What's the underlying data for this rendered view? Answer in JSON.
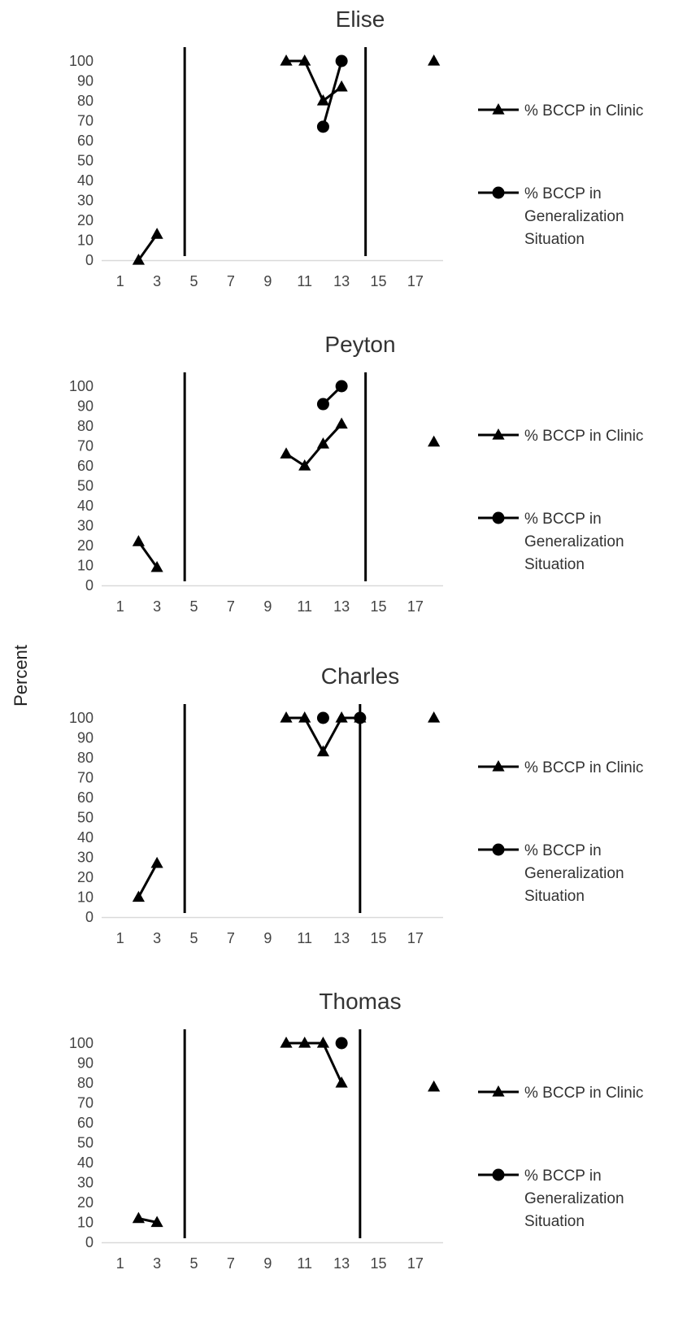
{
  "shared_ylabel": "Percent",
  "chart_data": [
    {
      "type": "line",
      "title": "Elise",
      "xlabel": "",
      "ylabel": "Percent",
      "xlim": [
        0,
        18.5
      ],
      "ylim": [
        0,
        100
      ],
      "x_ticks": [
        1,
        3,
        5,
        7,
        9,
        11,
        13,
        15,
        17
      ],
      "y_ticks": [
        0,
        10,
        20,
        30,
        40,
        50,
        60,
        70,
        80,
        90,
        100
      ],
      "phase_lines": [
        4.5,
        14.3
      ],
      "series": [
        {
          "name": "% BCCP in Clinic",
          "marker": "triangle",
          "segments": [
            [
              {
                "x": 2,
                "y": 0
              },
              {
                "x": 3,
                "y": 13
              }
            ],
            [
              {
                "x": 10,
                "y": 100
              },
              {
                "x": 11,
                "y": 100
              },
              {
                "x": 12,
                "y": 80
              },
              {
                "x": 13,
                "y": 87
              }
            ],
            [
              {
                "x": 18,
                "y": 100
              }
            ]
          ]
        },
        {
          "name": "% BCCP in Generalization Situation",
          "marker": "circle",
          "segments": [
            [
              {
                "x": 12,
                "y": 67
              },
              {
                "x": 13,
                "y": 100
              }
            ]
          ]
        }
      ],
      "legend": {
        "position": "right",
        "items": [
          "% BCCP in Clinic",
          "% BCCP in Generalization Situation"
        ]
      }
    },
    {
      "type": "line",
      "title": "Peyton",
      "xlabel": "",
      "ylabel": "Percent",
      "xlim": [
        0,
        18.5
      ],
      "ylim": [
        0,
        100
      ],
      "x_ticks": [
        1,
        3,
        5,
        7,
        9,
        11,
        13,
        15,
        17
      ],
      "y_ticks": [
        0,
        10,
        20,
        30,
        40,
        50,
        60,
        70,
        80,
        90,
        100
      ],
      "phase_lines": [
        4.5,
        14.3
      ],
      "series": [
        {
          "name": "% BCCP in Clinic",
          "marker": "triangle",
          "segments": [
            [
              {
                "x": 2,
                "y": 22
              },
              {
                "x": 3,
                "y": 9
              }
            ],
            [
              {
                "x": 10,
                "y": 66
              },
              {
                "x": 11,
                "y": 60
              },
              {
                "x": 12,
                "y": 71
              },
              {
                "x": 13,
                "y": 81
              }
            ],
            [
              {
                "x": 18,
                "y": 72
              }
            ]
          ]
        },
        {
          "name": "% BCCP in Generalization Situation",
          "marker": "circle",
          "segments": [
            [
              {
                "x": 12,
                "y": 91
              },
              {
                "x": 13,
                "y": 100
              }
            ]
          ]
        }
      ],
      "legend": {
        "position": "right",
        "items": [
          "% BCCP in Clinic",
          "% BCCP in Generalization Situation"
        ]
      }
    },
    {
      "type": "line",
      "title": "Charles",
      "xlabel": "",
      "ylabel": "Percent",
      "xlim": [
        0,
        18.5
      ],
      "ylim": [
        0,
        100
      ],
      "x_ticks": [
        1,
        3,
        5,
        7,
        9,
        11,
        13,
        15,
        17
      ],
      "y_ticks": [
        0,
        10,
        20,
        30,
        40,
        50,
        60,
        70,
        80,
        90,
        100
      ],
      "phase_lines": [
        4.5,
        14
      ],
      "series": [
        {
          "name": "% BCCP in Clinic",
          "marker": "triangle",
          "segments": [
            [
              {
                "x": 2,
                "y": 10
              },
              {
                "x": 3,
                "y": 27
              }
            ],
            [
              {
                "x": 10,
                "y": 100
              },
              {
                "x": 11,
                "y": 100
              },
              {
                "x": 12,
                "y": 83
              },
              {
                "x": 13,
                "y": 100
              },
              {
                "x": 14,
                "y": 100
              }
            ],
            [
              {
                "x": 18,
                "y": 100
              }
            ]
          ]
        },
        {
          "name": "% BCCP in Generalization Situation",
          "marker": "circle",
          "segments": [
            [
              {
                "x": 12,
                "y": 100
              }
            ],
            [
              {
                "x": 14,
                "y": 100
              }
            ]
          ]
        }
      ],
      "legend": {
        "position": "right",
        "items": [
          "% BCCP in Clinic",
          "% BCCP in Generalization Situation"
        ]
      }
    },
    {
      "type": "line",
      "title": "Thomas",
      "xlabel": "",
      "ylabel": "Percent",
      "xlim": [
        0,
        18.5
      ],
      "ylim": [
        0,
        100
      ],
      "x_ticks": [
        1,
        3,
        5,
        7,
        9,
        11,
        13,
        15,
        17
      ],
      "y_ticks": [
        0,
        10,
        20,
        30,
        40,
        50,
        60,
        70,
        80,
        90,
        100
      ],
      "phase_lines": [
        4.5,
        14
      ],
      "series": [
        {
          "name": "% BCCP in Clinic",
          "marker": "triangle",
          "segments": [
            [
              {
                "x": 2,
                "y": 12
              },
              {
                "x": 3,
                "y": 10
              }
            ],
            [
              {
                "x": 10,
                "y": 100
              },
              {
                "x": 11,
                "y": 100
              },
              {
                "x": 12,
                "y": 100
              },
              {
                "x": 13,
                "y": 80
              }
            ],
            [
              {
                "x": 18,
                "y": 78
              }
            ]
          ]
        },
        {
          "name": "% BCCP in Generalization Situation",
          "marker": "circle",
          "segments": [
            [
              {
                "x": 13,
                "y": 100
              }
            ]
          ]
        }
      ],
      "legend": {
        "position": "right",
        "items": [
          "% BCCP in Clinic",
          "% BCCP in Generalization Situation"
        ]
      }
    }
  ]
}
